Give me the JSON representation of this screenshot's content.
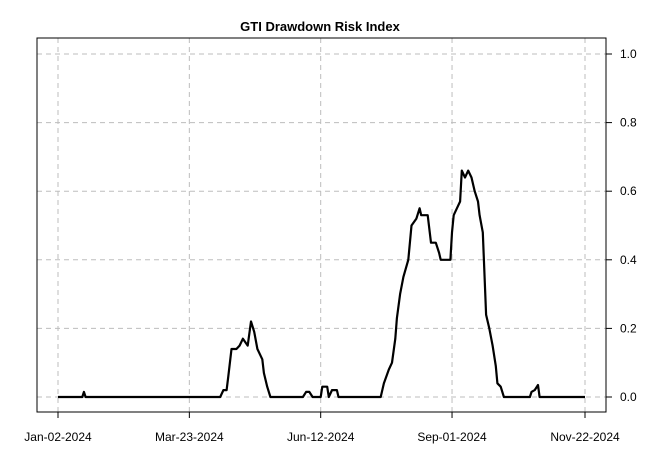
{
  "chart_data": {
    "type": "line",
    "title": "GTI Drawdown Risk Index",
    "xlabel": "",
    "ylabel": "",
    "x_axis": "date",
    "xlim": [
      "2024-01-02",
      "2024-11-22"
    ],
    "ylim": [
      0,
      1
    ],
    "y_axis_side": "right",
    "grid": true,
    "x_ticks": [
      "Jan-02-2024",
      "Mar-23-2024",
      "Jun-12-2024",
      "Sep-01-2024",
      "Nov-22-2024"
    ],
    "y_ticks": [
      "0.0",
      "0.2",
      "0.4",
      "0.6",
      "0.8",
      "1.0"
    ],
    "series": [
      {
        "color": "#000000",
        "points": [
          [
            "2024-01-02",
            0.0
          ],
          [
            "2024-01-17",
            0.0
          ],
          [
            "2024-01-18",
            0.015
          ],
          [
            "2024-01-19",
            0.0
          ],
          [
            "2024-04-11",
            0.0
          ],
          [
            "2024-04-13",
            0.02
          ],
          [
            "2024-04-15",
            0.02
          ],
          [
            "2024-04-16",
            0.06
          ],
          [
            "2024-04-18",
            0.14
          ],
          [
            "2024-04-21",
            0.14
          ],
          [
            "2024-04-23",
            0.15
          ],
          [
            "2024-04-25",
            0.17
          ],
          [
            "2024-04-28",
            0.15
          ],
          [
            "2024-04-30",
            0.22
          ],
          [
            "2024-05-02",
            0.19
          ],
          [
            "2024-05-04",
            0.14
          ],
          [
            "2024-05-07",
            0.11
          ],
          [
            "2024-05-08",
            0.07
          ],
          [
            "2024-05-10",
            0.03
          ],
          [
            "2024-05-12",
            0.0
          ],
          [
            "2024-06-01",
            0.0
          ],
          [
            "2024-06-03",
            0.015
          ],
          [
            "2024-06-05",
            0.015
          ],
          [
            "2024-06-07",
            0.0
          ],
          [
            "2024-06-08",
            0.0
          ],
          [
            "2024-06-09",
            0.0
          ],
          [
            "2024-06-10",
            0.0
          ],
          [
            "2024-06-11",
            0.0
          ],
          [
            "2024-06-12",
            0.0
          ],
          [
            "2024-06-13",
            0.03
          ],
          [
            "2024-06-16",
            0.03
          ],
          [
            "2024-06-17",
            0.0
          ],
          [
            "2024-06-19",
            0.02
          ],
          [
            "2024-06-22",
            0.02
          ],
          [
            "2024-06-23",
            0.0
          ],
          [
            "2024-07-19",
            0.0
          ],
          [
            "2024-07-21",
            0.04
          ],
          [
            "2024-07-24",
            0.08
          ],
          [
            "2024-07-26",
            0.1
          ],
          [
            "2024-07-28",
            0.17
          ],
          [
            "2024-07-29",
            0.23
          ],
          [
            "2024-07-31",
            0.3
          ],
          [
            "2024-08-02",
            0.35
          ],
          [
            "2024-08-05",
            0.4
          ],
          [
            "2024-08-07",
            0.5
          ],
          [
            "2024-08-10",
            0.52
          ],
          [
            "2024-08-12",
            0.55
          ],
          [
            "2024-08-13",
            0.53
          ],
          [
            "2024-08-17",
            0.53
          ],
          [
            "2024-08-19",
            0.45
          ],
          [
            "2024-08-22",
            0.45
          ],
          [
            "2024-08-24",
            0.42
          ],
          [
            "2024-08-25",
            0.4
          ],
          [
            "2024-08-31",
            0.4
          ],
          [
            "2024-09-01",
            0.48
          ],
          [
            "2024-09-02",
            0.53
          ],
          [
            "2024-09-04",
            0.55
          ],
          [
            "2024-09-06",
            0.57
          ],
          [
            "2024-09-07",
            0.66
          ],
          [
            "2024-09-09",
            0.64
          ],
          [
            "2024-09-11",
            0.66
          ],
          [
            "2024-09-13",
            0.64
          ],
          [
            "2024-09-15",
            0.6
          ],
          [
            "2024-09-17",
            0.57
          ],
          [
            "2024-09-18",
            0.53
          ],
          [
            "2024-09-20",
            0.48
          ],
          [
            "2024-09-22",
            0.24
          ],
          [
            "2024-09-24",
            0.2
          ],
          [
            "2024-09-26",
            0.15
          ],
          [
            "2024-09-28",
            0.09
          ],
          [
            "2024-09-29",
            0.04
          ],
          [
            "2024-10-01",
            0.03
          ],
          [
            "2024-10-03",
            0.0
          ],
          [
            "2024-10-19",
            0.0
          ],
          [
            "2024-10-20",
            0.015
          ],
          [
            "2024-10-22",
            0.02
          ],
          [
            "2024-10-24",
            0.035
          ],
          [
            "2024-10-25",
            0.0
          ],
          [
            "2024-11-22",
            0.0
          ]
        ]
      }
    ]
  }
}
